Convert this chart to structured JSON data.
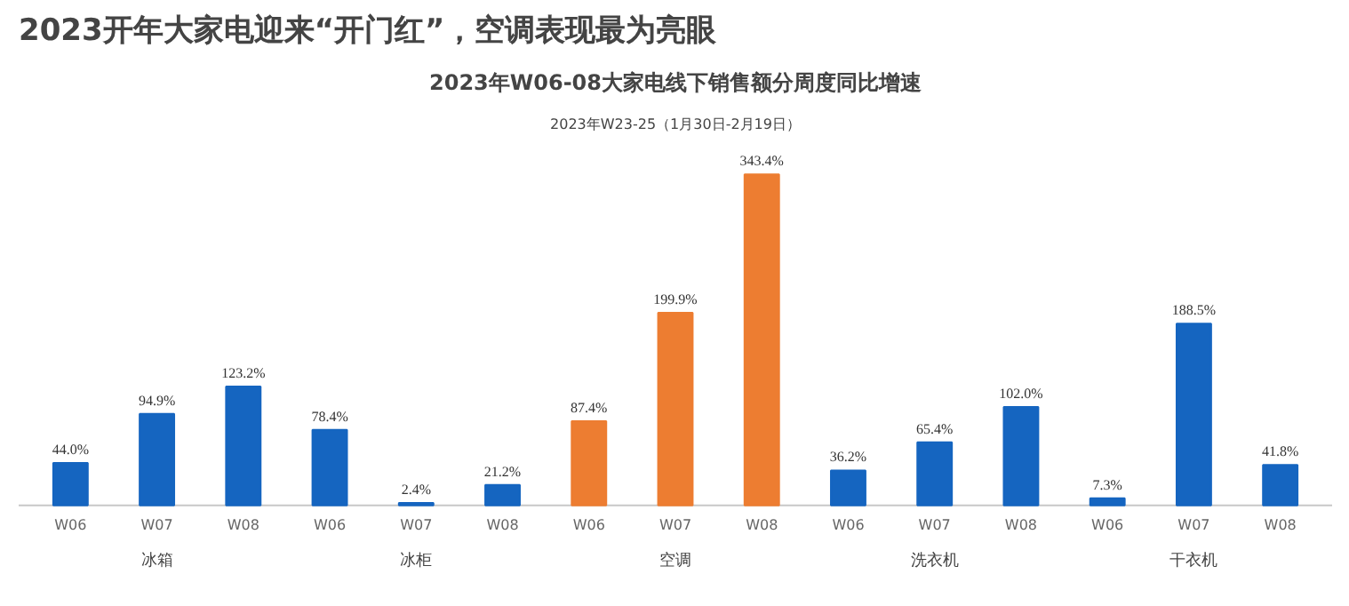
{
  "chart_data": {
    "type": "bar",
    "title": "2023开年大家电迎来“开门红”，空调表现最为亮眼",
    "subtitle": "2023年W06-08大家电线下销售额分周度同比增速",
    "annotations": [
      "2023年W23-25（1月30日-2月19日）"
    ],
    "categories": [
      "W06",
      "W07",
      "W08",
      "W06",
      "W07",
      "W08",
      "W06",
      "W07",
      "W08",
      "W06",
      "W07",
      "W08",
      "W06",
      "W07",
      "W08"
    ],
    "series": [
      {
        "name": "冰箱",
        "color": "#1565c0",
        "values": [
          44.0,
          94.9,
          123.2,
          null,
          null,
          null,
          null,
          null,
          null,
          null,
          null,
          null,
          null,
          null,
          null
        ],
        "value_labels": [
          "44.0%",
          "94.9%",
          "123.2%",
          null,
          null,
          null,
          null,
          null,
          null,
          null,
          null,
          null,
          null,
          null,
          null
        ]
      },
      {
        "name": "冰柜",
        "color": "#1565c0",
        "values": [
          null,
          null,
          null,
          78.4,
          2.4,
          21.2,
          null,
          null,
          null,
          null,
          null,
          null,
          null,
          null,
          null
        ],
        "value_labels": [
          null,
          null,
          null,
          "78.4%",
          "2.4%",
          "21.2%",
          null,
          null,
          null,
          null,
          null,
          null,
          null,
          null,
          null
        ]
      },
      {
        "name": "空调",
        "color": "#ed7d31",
        "values": [
          null,
          null,
          null,
          null,
          null,
          null,
          87.4,
          199.9,
          343.4,
          null,
          null,
          null,
          null,
          null,
          null
        ],
        "value_labels": [
          null,
          null,
          null,
          null,
          null,
          null,
          "87.4%",
          "199.9%",
          "343.4%",
          null,
          null,
          null,
          null,
          null,
          null
        ]
      },
      {
        "name": "洗衣机",
        "color": "#1565c0",
        "values": [
          null,
          null,
          null,
          null,
          null,
          null,
          null,
          null,
          null,
          36.2,
          65.4,
          102.0,
          null,
          null,
          null
        ],
        "value_labels": [
          null,
          null,
          null,
          null,
          null,
          null,
          null,
          null,
          null,
          "36.2%",
          "65.4%",
          "102.0%",
          null,
          null,
          null
        ]
      },
      {
        "name": "干衣机",
        "color": "#1565c0",
        "values": [
          null,
          null,
          null,
          null,
          null,
          null,
          null,
          null,
          null,
          null,
          null,
          null,
          7.3,
          188.5,
          41.8
        ],
        "value_labels": [
          null,
          null,
          null,
          null,
          null,
          null,
          null,
          null,
          null,
          null,
          null,
          null,
          "7.3%",
          "188.5%",
          "41.8%"
        ]
      }
    ],
    "tick_labels": "x"
  }
}
